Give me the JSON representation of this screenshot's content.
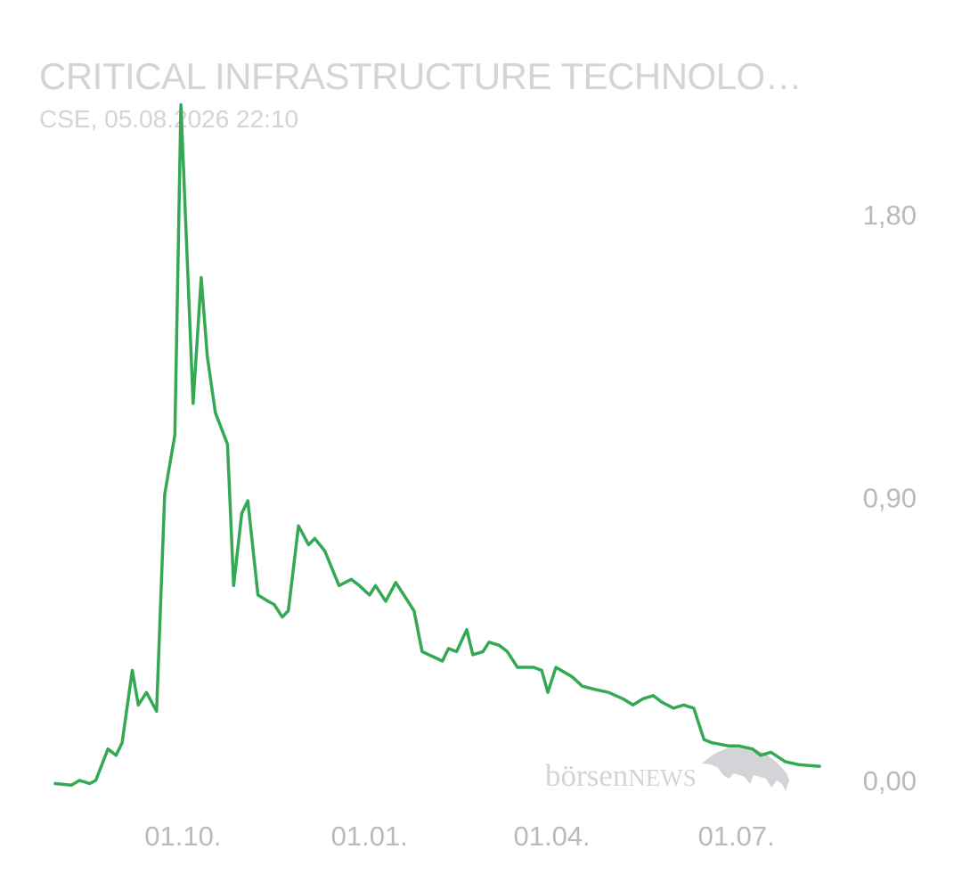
{
  "header": {
    "title": "CRITICAL INFRASTRUCTURE TECHNOLO…",
    "subtitle": "CSE, 05.08.2026 22:10"
  },
  "watermark": {
    "text_lower": "börsen",
    "text_upper": "NEWS",
    "icon": "bull-icon"
  },
  "colors": {
    "line": "#34a853",
    "axis_text": "#b9babd",
    "header_text": "#d3d4d7",
    "watermark": "#d3d4d7"
  },
  "chart_data": {
    "type": "line",
    "title": "CRITICAL INFRASTRUCTURE TECHNOLO…",
    "x_ticks": [
      {
        "label": "01.10.",
        "value": 63
      },
      {
        "label": "01.01.",
        "value": 155
      },
      {
        "label": "01.04.",
        "value": 245
      },
      {
        "label": "01.07.",
        "value": 336
      }
    ],
    "y_ticks": [
      {
        "label": "0,00",
        "value": 0
      },
      {
        "label": "0,90",
        "value": 0.9
      },
      {
        "label": "1,80",
        "value": 1.8
      }
    ],
    "xlim": [
      0,
      377
    ],
    "ylim": [
      0,
      2.2
    ],
    "grid": false,
    "series": [
      {
        "points": [
          [
            0,
            -0.01
          ],
          [
            8,
            -0.015
          ],
          [
            12,
            0.0
          ],
          [
            17,
            -0.01
          ],
          [
            20,
            0.0
          ],
          [
            26,
            0.1
          ],
          [
            30,
            0.08
          ],
          [
            33,
            0.12
          ],
          [
            38,
            0.35
          ],
          [
            41,
            0.24
          ],
          [
            45,
            0.28
          ],
          [
            50,
            0.22
          ],
          [
            54,
            0.91
          ],
          [
            59,
            1.1
          ],
          [
            62,
            2.15
          ],
          [
            68,
            1.2
          ],
          [
            72,
            1.6
          ],
          [
            75,
            1.35
          ],
          [
            79,
            1.17
          ],
          [
            85,
            1.07
          ],
          [
            88,
            0.62
          ],
          [
            92,
            0.85
          ],
          [
            95,
            0.89
          ],
          [
            100,
            0.59
          ],
          [
            105,
            0.57
          ],
          [
            108,
            0.56
          ],
          [
            112,
            0.52
          ],
          [
            115,
            0.54
          ],
          [
            120,
            0.81
          ],
          [
            125,
            0.75
          ],
          [
            128,
            0.77
          ],
          [
            133,
            0.73
          ],
          [
            140,
            0.62
          ],
          [
            146,
            0.64
          ],
          [
            150,
            0.62
          ],
          [
            155,
            0.59
          ],
          [
            158,
            0.62
          ],
          [
            163,
            0.57
          ],
          [
            168,
            0.63
          ],
          [
            177,
            0.54
          ],
          [
            181,
            0.41
          ],
          [
            191,
            0.38
          ],
          [
            194,
            0.42
          ],
          [
            198,
            0.41
          ],
          [
            203,
            0.48
          ],
          [
            206,
            0.4
          ],
          [
            211,
            0.41
          ],
          [
            214,
            0.44
          ],
          [
            219,
            0.43
          ],
          [
            223,
            0.41
          ],
          [
            225,
            0.39
          ],
          [
            228,
            0.36
          ],
          [
            236,
            0.36
          ],
          [
            240,
            0.35
          ],
          [
            243,
            0.28
          ],
          [
            247,
            0.36
          ],
          [
            255,
            0.33
          ],
          [
            260,
            0.3
          ],
          [
            266,
            0.29
          ],
          [
            273,
            0.28
          ],
          [
            280,
            0.26
          ],
          [
            285,
            0.24
          ],
          [
            290,
            0.26
          ],
          [
            295,
            0.27
          ],
          [
            299,
            0.25
          ],
          [
            305,
            0.23
          ],
          [
            310,
            0.24
          ],
          [
            315,
            0.23
          ],
          [
            320,
            0.13
          ],
          [
            324,
            0.12
          ],
          [
            332,
            0.11
          ],
          [
            337,
            0.11
          ],
          [
            344,
            0.1
          ],
          [
            348,
            0.08
          ],
          [
            353,
            0.09
          ],
          [
            360,
            0.06
          ],
          [
            367,
            0.05
          ],
          [
            377,
            0.045
          ]
        ]
      }
    ]
  }
}
